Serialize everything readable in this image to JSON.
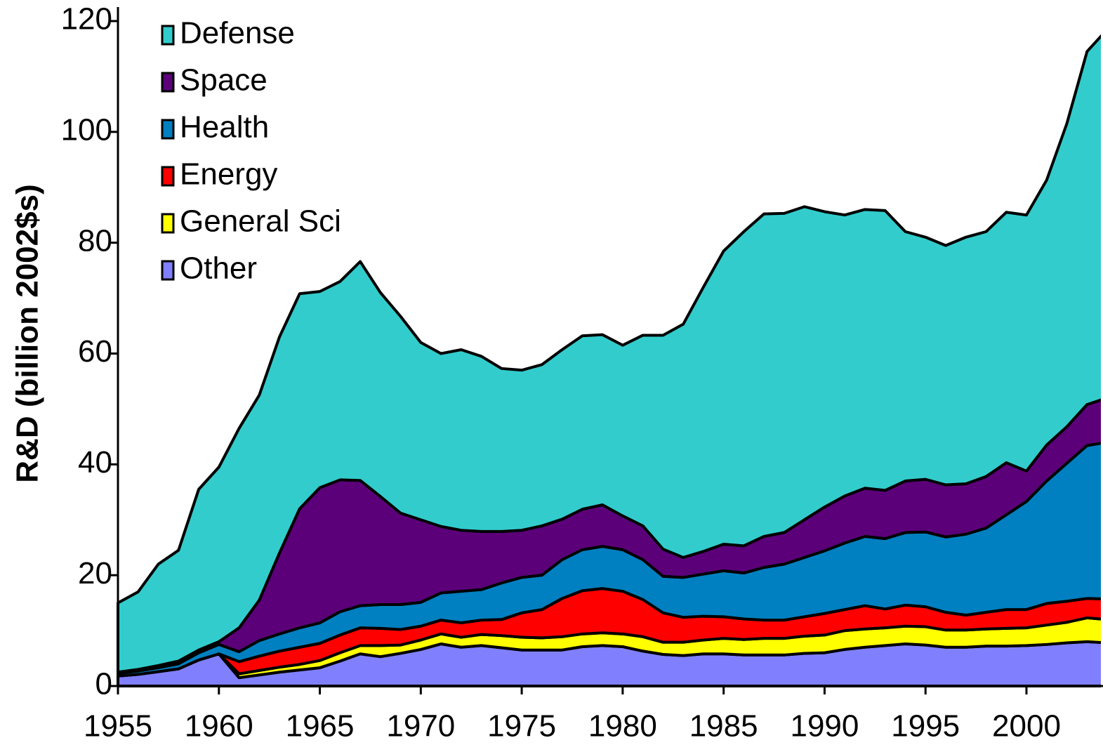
{
  "chart_data": {
    "type": "stacked-area",
    "y_label": "R&D (billion 2002$s)",
    "x": [
      1955,
      1956,
      1957,
      1958,
      1959,
      1960,
      1961,
      1962,
      1963,
      1964,
      1965,
      1966,
      1967,
      1968,
      1969,
      1970,
      1971,
      1972,
      1973,
      1974,
      1975,
      1976,
      1977,
      1978,
      1979,
      1980,
      1981,
      1982,
      1983,
      1984,
      1985,
      1986,
      1987,
      1988,
      1989,
      1990,
      1991,
      1992,
      1993,
      1994,
      1995,
      1996,
      1997,
      1998,
      1999,
      2000,
      2001,
      2002,
      2003,
      2004
    ],
    "series": [
      {
        "name": "Defense",
        "color": "#33cccc",
        "values": [
          12.5,
          14,
          18.3,
          20,
          29,
          31.5,
          36,
          37,
          39,
          38.8,
          35.4,
          35.8,
          39.5,
          36.8,
          35.5,
          32,
          31.2,
          32.6,
          31.6,
          29.4,
          28.9,
          29.1,
          30.6,
          31.3,
          30.7,
          30.8,
          34.4,
          38.6,
          42.1,
          47.7,
          52.9,
          56.7,
          58.2,
          57.6,
          56.5,
          53.3,
          50.7,
          50.3,
          50.5,
          45,
          43.7,
          43.2,
          44.5,
          44.2,
          45.2,
          46.2,
          47.8,
          54.7,
          63.7,
          66.5
        ]
      },
      {
        "name": "Space",
        "color": "#5c007a",
        "values": [
          0.2,
          0.3,
          0.4,
          0.5,
          0.5,
          0.5,
          4.3,
          7.3,
          14.6,
          21.5,
          24.4,
          23.8,
          22.6,
          19.5,
          16.5,
          14.9,
          12,
          11,
          10.5,
          9.3,
          8.5,
          8.9,
          7.3,
          7.3,
          7.5,
          6.1,
          6.1,
          4.9,
          3.6,
          4.1,
          4.8,
          4.9,
          5.6,
          5.7,
          6.8,
          7.9,
          8.5,
          8.7,
          8.7,
          9.3,
          9.5,
          9.4,
          9.1,
          9.3,
          9.4,
          5.5,
          6.5,
          6.6,
          7.4,
          8
        ]
      },
      {
        "name": "Health",
        "color": "#0080c0",
        "values": [
          0.5,
          0.6,
          0.7,
          0.9,
          1.3,
          1.7,
          1.8,
          2.8,
          3.1,
          3.5,
          3.7,
          4.2,
          4,
          4.3,
          4.5,
          4.3,
          4.9,
          5.7,
          5.5,
          6.6,
          6.4,
          6.2,
          7,
          7.4,
          7.6,
          7.5,
          7.2,
          6.6,
          7.2,
          7.6,
          8.3,
          8.3,
          9.5,
          10.1,
          10.7,
          11.3,
          12,
          12.5,
          12.7,
          13.1,
          13.5,
          13.6,
          14.6,
          15.2,
          17.1,
          19.5,
          22.1,
          24.9,
          27.6,
          28.3
        ]
      },
      {
        "name": "Energy",
        "color": "#ff0000",
        "values": [
          0,
          0,
          0,
          0,
          0,
          0,
          2.2,
          2.6,
          2.9,
          3.1,
          3.1,
          3.2,
          3.2,
          3.1,
          2.8,
          2.5,
          2.5,
          2.6,
          2.6,
          2.9,
          4.4,
          5.1,
          6.9,
          7.8,
          8,
          7.7,
          6.7,
          5.3,
          4.5,
          4.3,
          3.9,
          3.7,
          3.3,
          3.3,
          3.5,
          3.9,
          3.8,
          4.2,
          3.4,
          3.8,
          3.6,
          3.2,
          2.7,
          3,
          3.4,
          3.3,
          3.9,
          3.8,
          3.5,
          3.7
        ]
      },
      {
        "name": "General Sci",
        "color": "#ffff00",
        "values": [
          0,
          0,
          0,
          0,
          0,
          0,
          0.7,
          0.8,
          0.9,
          1,
          1.3,
          1.5,
          1.5,
          2,
          1.5,
          1.7,
          1.8,
          1.8,
          2,
          2.2,
          2.3,
          2.2,
          2.4,
          2.3,
          2.3,
          2.3,
          2.6,
          2.2,
          2.4,
          2.5,
          2.8,
          2.8,
          3,
          3,
          3.1,
          3.2,
          3.4,
          3.3,
          3.2,
          3.2,
          3.3,
          3.1,
          3.1,
          3.1,
          3.2,
          3.2,
          3.5,
          3.7,
          4.3,
          4.2
        ]
      },
      {
        "name": "Other",
        "color": "#8080ff",
        "values": [
          1.8,
          2.1,
          2.6,
          3.1,
          4.7,
          5.8,
          1.5,
          2,
          2.5,
          2.9,
          3.3,
          4.5,
          5.8,
          5.3,
          5.9,
          6.6,
          7.6,
          7,
          7.3,
          6.9,
          6.5,
          6.5,
          6.5,
          7.1,
          7.3,
          7.1,
          6.3,
          5.7,
          5.5,
          5.8,
          5.8,
          5.6,
          5.6,
          5.6,
          5.9,
          6,
          6.6,
          7,
          7.3,
          7.6,
          7.4,
          7,
          7,
          7.2,
          7.2,
          7.3,
          7.5,
          7.8,
          8,
          7.8
        ]
      }
    ],
    "xlim": [
      1955,
      2004
    ],
    "xticks": [
      1955,
      1960,
      1965,
      1970,
      1975,
      1980,
      1985,
      1990,
      1995,
      2000
    ],
    "ylim": [
      0,
      120
    ],
    "yticks": [
      0,
      20,
      40,
      60,
      80,
      100,
      120
    ],
    "legend": "top-left"
  }
}
